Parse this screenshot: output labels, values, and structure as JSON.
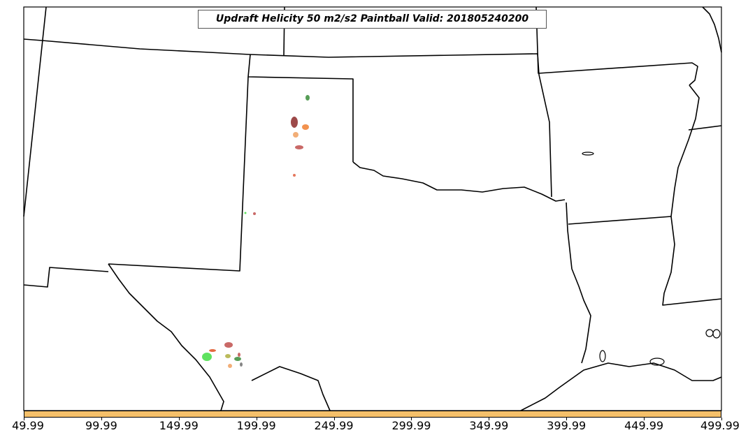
{
  "title": "Updraft Helicity 50 m2/s2 Paintball Valid: 201805240200",
  "colorbar": {
    "color": "#f5c06a",
    "ticks": [
      "49.99",
      "99.99",
      "149.99",
      "199.99",
      "249.99",
      "299.99",
      "349.99",
      "399.99",
      "449.99",
      "499.99"
    ]
  },
  "paintball_colors": [
    "#3a8c3a",
    "#8c2a2a",
    "#f08030",
    "#e06040",
    "#c0504d",
    "#44dd44",
    "#b0b040",
    "#707070"
  ]
}
